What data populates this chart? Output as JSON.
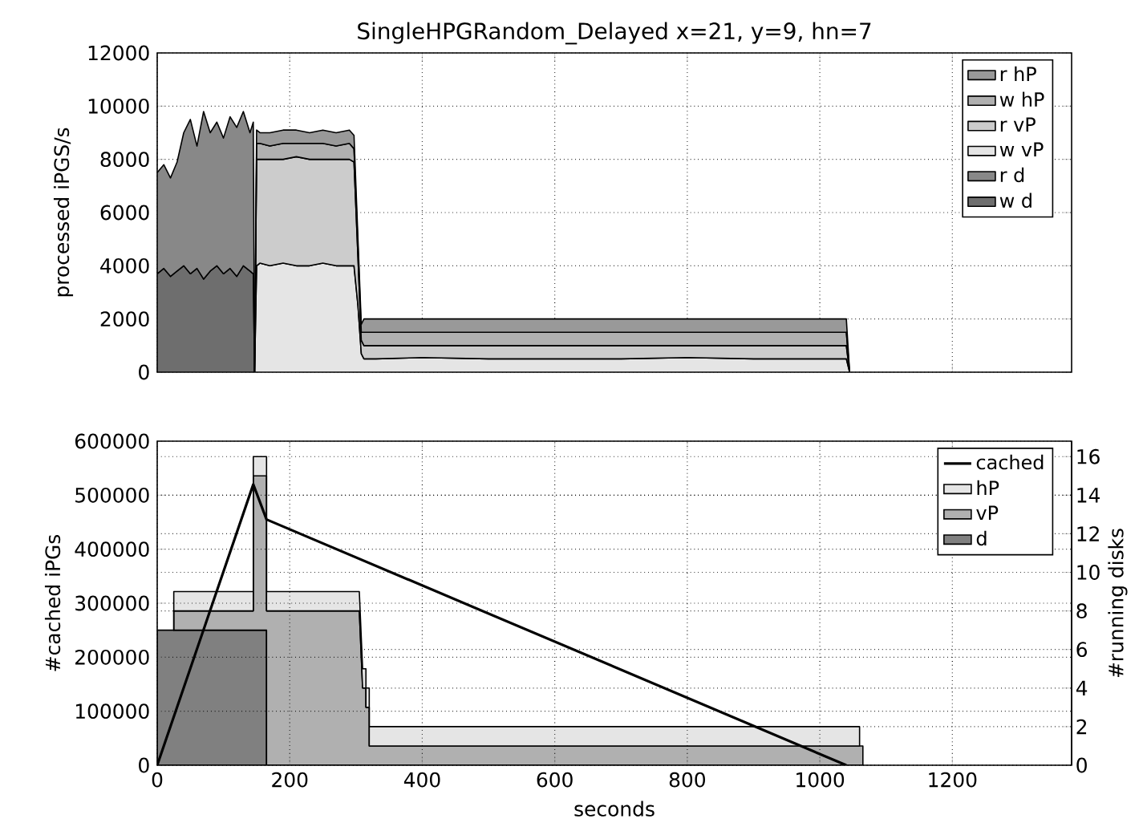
{
  "chart_data": [
    {
      "type": "area",
      "title": "SingleHPGRandom_Delayed x=21, y=9, hn=7",
      "ylabel": "processed iPGS/s",
      "stacked": true,
      "legend": "top right",
      "grid": true,
      "tick_labels": "y",
      "xlim": [
        0,
        1380
      ],
      "xticks": [
        0,
        200,
        400,
        600,
        800,
        1000,
        1200
      ],
      "ylim": [
        0,
        12000
      ],
      "yticks": [
        0,
        2000,
        4000,
        6000,
        8000,
        10000,
        12000
      ],
      "x": [
        0,
        10,
        20,
        30,
        40,
        50,
        60,
        70,
        80,
        90,
        100,
        110,
        120,
        130,
        140,
        145,
        147,
        150,
        155,
        170,
        190,
        210,
        230,
        250,
        270,
        290,
        297,
        303,
        308,
        312,
        330,
        400,
        500,
        600,
        700,
        800,
        900,
        1000,
        1040,
        1045
      ],
      "series": [
        {
          "name": "w d",
          "color": "#6e6e6e",
          "values": [
            3700,
            3900,
            3600,
            3800,
            4000,
            3700,
            3900,
            3500,
            3800,
            4000,
            3700,
            3900,
            3600,
            4000,
            3800,
            3700,
            0,
            null,
            null,
            null,
            null,
            null,
            null,
            null,
            null,
            null,
            null,
            null,
            null,
            null,
            null,
            null,
            null,
            null,
            null,
            null,
            null,
            null,
            null,
            null
          ]
        },
        {
          "name": "r d",
          "color": "#888888",
          "values": [
            3800,
            3900,
            3700,
            4100,
            5000,
            5800,
            4600,
            6300,
            5200,
            5400,
            5100,
            5700,
            5600,
            5800,
            5200,
            5700,
            0,
            null,
            null,
            null,
            null,
            null,
            null,
            null,
            null,
            null,
            null,
            null,
            null,
            null,
            null,
            null,
            null,
            null,
            null,
            null,
            null,
            null,
            null,
            null
          ]
        },
        {
          "name": "w vP",
          "color": "#e5e5e5",
          "values": [
            null,
            null,
            null,
            null,
            null,
            null,
            null,
            null,
            null,
            null,
            null,
            null,
            null,
            null,
            null,
            null,
            0,
            4000,
            4100,
            4000,
            4100,
            4000,
            4000,
            4100,
            4000,
            4000,
            4000,
            2500,
            700,
            500,
            500,
            550,
            500,
            500,
            500,
            550,
            500,
            500,
            500,
            0
          ]
        },
        {
          "name": "r vP",
          "color": "#cccccc",
          "values": [
            null,
            null,
            null,
            null,
            null,
            null,
            null,
            null,
            null,
            null,
            null,
            null,
            null,
            null,
            null,
            null,
            0,
            4000,
            3900,
            4000,
            3900,
            4100,
            4000,
            3900,
            4000,
            4000,
            3900,
            1800,
            500,
            500,
            500,
            450,
            500,
            500,
            500,
            450,
            500,
            500,
            500,
            0
          ]
        },
        {
          "name": "w hP",
          "color": "#b0b0b0",
          "values": [
            null,
            null,
            null,
            null,
            null,
            null,
            null,
            null,
            null,
            null,
            null,
            null,
            null,
            null,
            null,
            null,
            0,
            600,
            600,
            500,
            600,
            500,
            600,
            600,
            500,
            600,
            500,
            400,
            300,
            500,
            500,
            500,
            500,
            500,
            500,
            500,
            500,
            500,
            500,
            0
          ]
        },
        {
          "name": "r hP",
          "color": "#999999",
          "values": [
            null,
            null,
            null,
            null,
            null,
            null,
            null,
            null,
            null,
            null,
            null,
            null,
            null,
            null,
            null,
            null,
            0,
            500,
            400,
            500,
            500,
            500,
            400,
            500,
            500,
            500,
            500,
            300,
            300,
            500,
            500,
            500,
            500,
            500,
            500,
            500,
            500,
            500,
            500,
            0
          ]
        }
      ]
    },
    {
      "type": "area",
      "xlabel": "seconds",
      "ylabel": "#cached iPGs",
      "y2label": "#running disks",
      "stacked": true,
      "legend": "top right",
      "grid": true,
      "xlim": [
        0,
        1380
      ],
      "xticks": [
        0,
        200,
        400,
        600,
        800,
        1000,
        1200
      ],
      "ylim": [
        0,
        600000
      ],
      "yticks": [
        0,
        100000,
        200000,
        300000,
        400000,
        500000,
        600000
      ],
      "y2lim": [
        0,
        16.8
      ],
      "y2ticks": [
        0,
        2,
        4,
        6,
        8,
        10,
        12,
        14,
        16
      ],
      "x": [
        0,
        25,
        25,
        145,
        145,
        165,
        165,
        305,
        310,
        315,
        315,
        320,
        320,
        1060,
        1060,
        1065,
        1065
      ],
      "series": [
        {
          "name": "d",
          "color": "#808080",
          "axis": "y2",
          "values": [
            7,
            7,
            7,
            7,
            7,
            7,
            0,
            null,
            null,
            null,
            null,
            null,
            null,
            null,
            null,
            null,
            null
          ]
        },
        {
          "name": "vP",
          "color": "#b0b0b0",
          "axis": "y2",
          "values": [
            null,
            0,
            1,
            1,
            8,
            8,
            8,
            8,
            4,
            4,
            3,
            3,
            1,
            1,
            1,
            1,
            0
          ]
        },
        {
          "name": "hP",
          "color": "#e5e5e5",
          "axis": "y2",
          "values": [
            null,
            0,
            1,
            1,
            1,
            1,
            1,
            1,
            1,
            1,
            1,
            1,
            1,
            1,
            0,
            null,
            null
          ]
        },
        {
          "name": "cached",
          "type": "line",
          "color": "#000000",
          "x": [
            0,
            145,
            165,
            1040
          ],
          "values": [
            0,
            520000,
            455000,
            0
          ]
        }
      ]
    }
  ]
}
